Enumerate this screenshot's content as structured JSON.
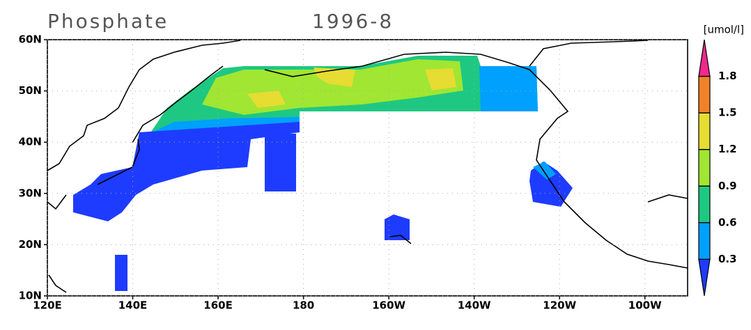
{
  "header": {
    "title": "Phosphate",
    "date": "1996-8",
    "unit": "[umol/l]"
  },
  "map": {
    "lon_range": [
      120,
      270
    ],
    "lat_range": [
      10,
      60
    ],
    "lon_ticks": [
      {
        "value": 120,
        "label": "120E"
      },
      {
        "value": 140,
        "label": "140E"
      },
      {
        "value": 160,
        "label": "160E"
      },
      {
        "value": 180,
        "label": "180"
      },
      {
        "value": 200,
        "label": "160W"
      },
      {
        "value": 220,
        "label": "140W"
      },
      {
        "value": 240,
        "label": "120W"
      },
      {
        "value": 260,
        "label": "100W"
      }
    ],
    "lat_ticks": [
      {
        "value": 10,
        "label": "10N"
      },
      {
        "value": 20,
        "label": "20N"
      },
      {
        "value": 30,
        "label": "30N"
      },
      {
        "value": 40,
        "label": "40N"
      },
      {
        "value": 50,
        "label": "50N"
      },
      {
        "value": 60,
        "label": "60N"
      }
    ]
  },
  "colorbar": {
    "levels": [
      0.3,
      0.6,
      0.9,
      1.2,
      1.5,
      1.8
    ],
    "colors": [
      "#1e3cff",
      "#00a0ff",
      "#1ec882",
      "#a0e632",
      "#e6dc32",
      "#f08228",
      "#f0288c"
    ]
  }
}
